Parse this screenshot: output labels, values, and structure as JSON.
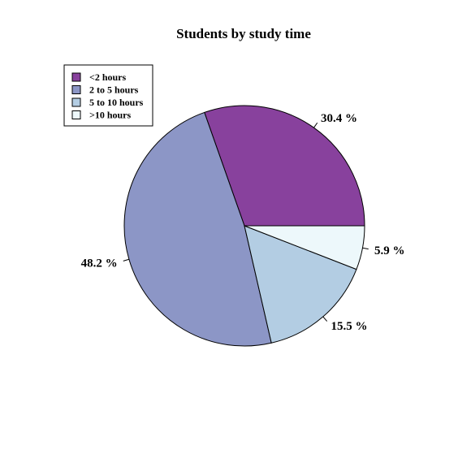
{
  "chart_data": {
    "type": "pie",
    "title": "Students by study time",
    "start_angle_deg": 0,
    "direction": "counterclockwise",
    "legend_position": "top-left",
    "slices": [
      {
        "label": "<2 hours",
        "value": 30.4,
        "value_label": "30.4 %",
        "color": "#88419d"
      },
      {
        "label": "2 to 5 hours",
        "value": 48.2,
        "value_label": "48.2 %",
        "color": "#8c96c6"
      },
      {
        "label": "5 to 10 hours",
        "value": 15.5,
        "value_label": "15.5 %",
        "color": "#b3cde3"
      },
      {
        "label": ">10 hours",
        "value": 5.9,
        "value_label": "5.9 %",
        "color": "#edf8fb"
      }
    ]
  }
}
